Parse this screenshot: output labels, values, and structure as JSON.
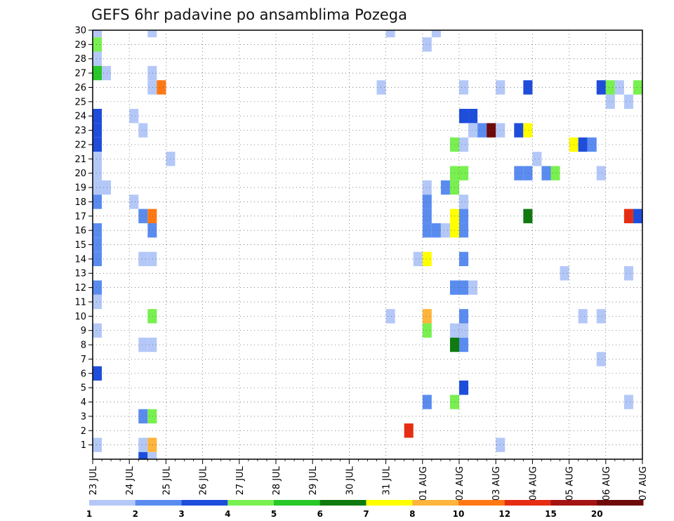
{
  "chart_data": {
    "type": "heatmap",
    "title": "GEFS 6hr padavine po ansamblima Pozega",
    "y_ticks": [
      1,
      2,
      3,
      4,
      5,
      6,
      7,
      8,
      9,
      10,
      11,
      12,
      13,
      14,
      15,
      16,
      17,
      18,
      19,
      20,
      21,
      22,
      23,
      24,
      25,
      26,
      27,
      28,
      29,
      30
    ],
    "ylim": [
      0,
      30
    ],
    "x_ticks": [
      "23 JUL",
      "24 JUL",
      "25 JUL",
      "26 JUL",
      "27 JUL",
      "28 JUL",
      "29 JUL",
      "30 JUL",
      "31 JUL",
      "01 AUG",
      "02 AUG",
      "03 AUG",
      "04 AUG",
      "05 AUG",
      "06 AUG",
      "07 AUG"
    ],
    "x_range_days": [
      0,
      15
    ],
    "grid": true,
    "legend": {
      "position": "bottom",
      "labels": [
        "1",
        "2",
        "3",
        "4",
        "5",
        "6",
        "7",
        "8",
        "10",
        "12",
        "15",
        "20"
      ],
      "colors": [
        "#b4c8f8",
        "#5a8cf0",
        "#1e4ddc",
        "#78f050",
        "#28c828",
        "#0f7a0f",
        "#ffff00",
        "#ffb43c",
        "#ff7814",
        "#e62d14",
        "#a51414",
        "#6e0a0a"
      ]
    },
    "cells_note": "each cell: x = start time in days after 23 JUL 00Z, y = ensemble member, c = color class index",
    "cells": [
      {
        "x": 0.0,
        "y": 30,
        "c": 0
      },
      {
        "x": 0.0,
        "y": 29,
        "c": 3
      },
      {
        "x": 0.0,
        "y": 28,
        "c": 0
      },
      {
        "x": 0.0,
        "y": 27,
        "c": 4
      },
      {
        "x": 0.25,
        "y": 27,
        "c": 0
      },
      {
        "x": 0.0,
        "y": 24,
        "c": 2
      },
      {
        "x": 0.0,
        "y": 23,
        "c": 2
      },
      {
        "x": 0.0,
        "y": 22,
        "c": 2
      },
      {
        "x": 0.0,
        "y": 21,
        "c": 0
      },
      {
        "x": 0.0,
        "y": 20,
        "c": 0
      },
      {
        "x": 0.0,
        "y": 19,
        "c": 0
      },
      {
        "x": 0.25,
        "y": 19,
        "c": 0
      },
      {
        "x": 0.0,
        "y": 18,
        "c": 1
      },
      {
        "x": 0.0,
        "y": 16,
        "c": 1
      },
      {
        "x": 0.0,
        "y": 15,
        "c": 1
      },
      {
        "x": 0.0,
        "y": 14,
        "c": 1
      },
      {
        "x": 0.0,
        "y": 12,
        "c": 1
      },
      {
        "x": 0.0,
        "y": 11,
        "c": 0
      },
      {
        "x": 0.0,
        "y": 9,
        "c": 0
      },
      {
        "x": 0.0,
        "y": 6,
        "c": 2
      },
      {
        "x": 0.0,
        "y": 1,
        "c": 0
      },
      {
        "x": 1.0,
        "y": 24,
        "c": 0
      },
      {
        "x": 1.25,
        "y": 23,
        "c": 0
      },
      {
        "x": 1.0,
        "y": 18,
        "c": 0
      },
      {
        "x": 1.25,
        "y": 17,
        "c": 1
      },
      {
        "x": 1.5,
        "y": 17,
        "c": 8
      },
      {
        "x": 1.5,
        "y": 16,
        "c": 1
      },
      {
        "x": 1.25,
        "y": 14,
        "c": 0
      },
      {
        "x": 1.5,
        "y": 14,
        "c": 0
      },
      {
        "x": 1.5,
        "y": 10,
        "c": 3
      },
      {
        "x": 1.25,
        "y": 8,
        "c": 0
      },
      {
        "x": 1.5,
        "y": 8,
        "c": 0
      },
      {
        "x": 1.25,
        "y": 3,
        "c": 1
      },
      {
        "x": 1.5,
        "y": 3,
        "c": 3
      },
      {
        "x": 1.25,
        "y": 1,
        "c": 0
      },
      {
        "x": 1.5,
        "y": 1,
        "c": 7
      },
      {
        "x": 1.25,
        "y": 0,
        "c": 2
      },
      {
        "x": 1.5,
        "y": 0,
        "c": 0
      },
      {
        "x": 1.5,
        "y": 30,
        "c": 0
      },
      {
        "x": 1.5,
        "y": 26,
        "c": 0
      },
      {
        "x": 1.5,
        "y": 27,
        "c": 0
      },
      {
        "x": 1.75,
        "y": 26,
        "c": 8
      },
      {
        "x": 2.0,
        "y": 21,
        "c": 0
      },
      {
        "x": 7.75,
        "y": 26,
        "c": 0
      },
      {
        "x": 8.0,
        "y": 30,
        "c": 0
      },
      {
        "x": 8.0,
        "y": 10,
        "c": 0
      },
      {
        "x": 8.75,
        "y": 14,
        "c": 0
      },
      {
        "x": 8.5,
        "y": 2,
        "c": 9
      },
      {
        "x": 9.0,
        "y": 29,
        "c": 0
      },
      {
        "x": 9.25,
        "y": 30,
        "c": 0
      },
      {
        "x": 9.0,
        "y": 19,
        "c": 0
      },
      {
        "x": 9.0,
        "y": 18,
        "c": 1
      },
      {
        "x": 9.0,
        "y": 17,
        "c": 1
      },
      {
        "x": 9.0,
        "y": 16,
        "c": 1
      },
      {
        "x": 9.25,
        "y": 16,
        "c": 1
      },
      {
        "x": 9.0,
        "y": 14,
        "c": 6
      },
      {
        "x": 9.0,
        "y": 10,
        "c": 7
      },
      {
        "x": 9.0,
        "y": 9,
        "c": 3
      },
      {
        "x": 9.0,
        "y": 4,
        "c": 1
      },
      {
        "x": 9.5,
        "y": 19,
        "c": 1
      },
      {
        "x": 9.5,
        "y": 16,
        "c": 0
      },
      {
        "x": 9.75,
        "y": 16,
        "c": 6
      },
      {
        "x": 9.75,
        "y": 17,
        "c": 6
      },
      {
        "x": 9.75,
        "y": 22,
        "c": 3
      },
      {
        "x": 9.75,
        "y": 20,
        "c": 3
      },
      {
        "x": 9.75,
        "y": 19,
        "c": 3
      },
      {
        "x": 10.0,
        "y": 20,
        "c": 3
      },
      {
        "x": 10.0,
        "y": 26,
        "c": 0
      },
      {
        "x": 10.0,
        "y": 22,
        "c": 0
      },
      {
        "x": 10.0,
        "y": 18,
        "c": 0
      },
      {
        "x": 10.0,
        "y": 17,
        "c": 1
      },
      {
        "x": 10.0,
        "y": 16,
        "c": 1
      },
      {
        "x": 10.0,
        "y": 14,
        "c": 1
      },
      {
        "x": 9.75,
        "y": 12,
        "c": 1
      },
      {
        "x": 10.0,
        "y": 12,
        "c": 1
      },
      {
        "x": 10.25,
        "y": 12,
        "c": 0
      },
      {
        "x": 10.0,
        "y": 10,
        "c": 1
      },
      {
        "x": 9.75,
        "y": 9,
        "c": 0
      },
      {
        "x": 10.0,
        "y": 9,
        "c": 0
      },
      {
        "x": 9.75,
        "y": 8,
        "c": 5
      },
      {
        "x": 10.0,
        "y": 8,
        "c": 1
      },
      {
        "x": 10.0,
        "y": 5,
        "c": 2
      },
      {
        "x": 9.75,
        "y": 4,
        "c": 3
      },
      {
        "x": 10.0,
        "y": 24,
        "c": 2
      },
      {
        "x": 10.25,
        "y": 24,
        "c": 2
      },
      {
        "x": 10.25,
        "y": 23,
        "c": 0
      },
      {
        "x": 10.5,
        "y": 23,
        "c": 1
      },
      {
        "x": 10.75,
        "y": 23,
        "c": 11
      },
      {
        "x": 11.0,
        "y": 23,
        "c": 0
      },
      {
        "x": 11.0,
        "y": 26,
        "c": 0
      },
      {
        "x": 11.0,
        "y": 1,
        "c": 0
      },
      {
        "x": 11.5,
        "y": 23,
        "c": 2
      },
      {
        "x": 11.75,
        "y": 23,
        "c": 6
      },
      {
        "x": 11.5,
        "y": 20,
        "c": 1
      },
      {
        "x": 11.75,
        "y": 20,
        "c": 1
      },
      {
        "x": 11.75,
        "y": 26,
        "c": 2
      },
      {
        "x": 11.75,
        "y": 17,
        "c": 5
      },
      {
        "x": 12.0,
        "y": 21,
        "c": 0
      },
      {
        "x": 12.25,
        "y": 20,
        "c": 1
      },
      {
        "x": 12.5,
        "y": 20,
        "c": 3
      },
      {
        "x": 12.75,
        "y": 13,
        "c": 0
      },
      {
        "x": 13.0,
        "y": 22,
        "c": 6
      },
      {
        "x": 13.25,
        "y": 22,
        "c": 2
      },
      {
        "x": 13.5,
        "y": 22,
        "c": 1
      },
      {
        "x": 13.25,
        "y": 10,
        "c": 0
      },
      {
        "x": 13.75,
        "y": 20,
        "c": 0
      },
      {
        "x": 13.75,
        "y": 10,
        "c": 0
      },
      {
        "x": 13.75,
        "y": 7,
        "c": 0
      },
      {
        "x": 13.75,
        "y": 26,
        "c": 2
      },
      {
        "x": 14.0,
        "y": 26,
        "c": 3
      },
      {
        "x": 14.25,
        "y": 26,
        "c": 0
      },
      {
        "x": 14.0,
        "y": 25,
        "c": 0
      },
      {
        "x": 14.5,
        "y": 25,
        "c": 0
      },
      {
        "x": 14.5,
        "y": 13,
        "c": 0
      },
      {
        "x": 14.5,
        "y": 4,
        "c": 0
      },
      {
        "x": 14.75,
        "y": 26,
        "c": 3
      },
      {
        "x": 14.5,
        "y": 17,
        "c": 9
      },
      {
        "x": 14.75,
        "y": 17,
        "c": 2
      }
    ]
  }
}
